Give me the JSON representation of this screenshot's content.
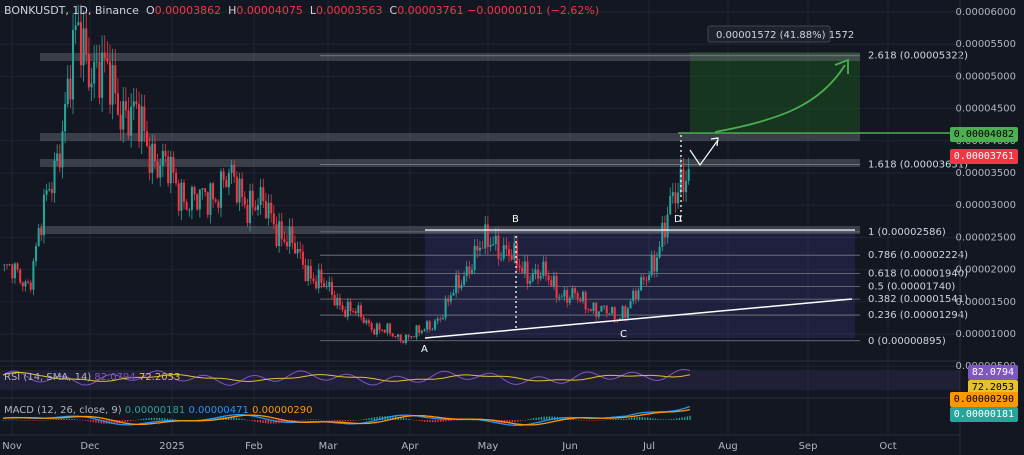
{
  "header": {
    "symbol": "BONKUSDT, 1D, Binance",
    "o_label": "O",
    "o": "0.00003862",
    "h_label": "H",
    "h": "0.00004075",
    "l_label": "L",
    "l": "0.00003563",
    "c_label": "C",
    "c": "0.00003761",
    "change": "−0.00000101 (−2.62%)"
  },
  "measure_label": "0.00001572 (41.88%) 1572",
  "colors": {
    "up": "#26a69a",
    "down": "#f23645",
    "green_line": "#4caf50",
    "accent": "#2962ff",
    "rsi": "#7e57c2",
    "macd": "#2196f3",
    "signal": "#ff9800"
  },
  "price_axis": [
    "0.00006000",
    "0.00005500",
    "0.00005000",
    "0.00004500",
    "0.00004000",
    "0.00003500",
    "0.00003000",
    "0.00002500",
    "0.00002000",
    "0.00001500",
    "0.00001000",
    "0.00000500"
  ],
  "time_axis": [
    "Nov",
    "Dec",
    "2025",
    "Feb",
    "Mar",
    "Apr",
    "May",
    "Jun",
    "Jul",
    "Aug",
    "Sep",
    "Oct"
  ],
  "price_tags": {
    "green": "0.00004082",
    "red": "0.00003761",
    "rsi_a": "82.0794",
    "rsi_b": "72.2053",
    "macd_a": "0.00000290",
    "macd_b": "0.00000181"
  },
  "fib_levels": [
    {
      "label": "2.618 (0.00005322)",
      "value": 5.322e-05
    },
    {
      "label": "1.618 (0.00003631)",
      "value": 3.631e-05
    },
    {
      "label": "1 (0.00002586)",
      "value": 2.586e-05
    },
    {
      "label": "0.786 (0.00002224)",
      "value": 2.224e-05
    },
    {
      "label": "0.618 (0.00001940)",
      "value": 1.94e-05
    },
    {
      "label": "0.5 (0.00001740)",
      "value": 1.74e-05
    },
    {
      "label": "0.382 (0.00001541)",
      "value": 1.541e-05
    },
    {
      "label": "0.236 (0.00001294)",
      "value": 1.294e-05
    },
    {
      "label": "0 (0.00000895)",
      "value": 8.95e-06
    }
  ],
  "pattern_points": [
    "A",
    "B",
    "C",
    "D"
  ],
  "rsi_label": "RSI (14, SMA, 14)",
  "rsi_v1": "82.0794",
  "rsi_v2": "72.2053",
  "macd_label": "MACD (12, 26, close, 9)",
  "macd_v1": "0.00000181",
  "macd_v2": "0.00000471",
  "macd_v3": "0.00000290",
  "chart_data": {
    "type": "line",
    "title": "BONKUSDT, 1D, Binance",
    "ylim": [
      5e-06,
      6.2e-05
    ],
    "x": [
      "Nov",
      "Nov",
      "Nov",
      "Nov",
      "Dec",
      "Dec",
      "Dec",
      "Dec",
      "2025",
      "2025",
      "2025",
      "Feb",
      "Feb",
      "Feb",
      "Mar",
      "Mar",
      "Mar",
      "Apr",
      "Apr",
      "Apr",
      "May",
      "May",
      "May",
      "Jun",
      "Jun",
      "Jun",
      "Jul",
      "Jul",
      "Jul"
    ],
    "series": [
      {
        "values": [
          2e-05,
          1.8e-05,
          3.5e-05,
          5.6e-05,
          5e-05,
          4.5e-05,
          3.9e-05,
          3.3e-05,
          3e-05,
          3.4e-05,
          3.1e-05,
          2.8e-05,
          2.2e-05,
          1.75e-05,
          1.4e-05,
          1.15e-05,
          9.5e-06,
          1e-05,
          1.35e-05,
          2.1e-05,
          2.5e-05,
          2.05e-05,
          1.9e-05,
          1.6e-05,
          1.45e-05,
          1.25e-05,
          1.65e-05,
          2.6e-05,
          3.76e-05
        ]
      }
    ]
  }
}
